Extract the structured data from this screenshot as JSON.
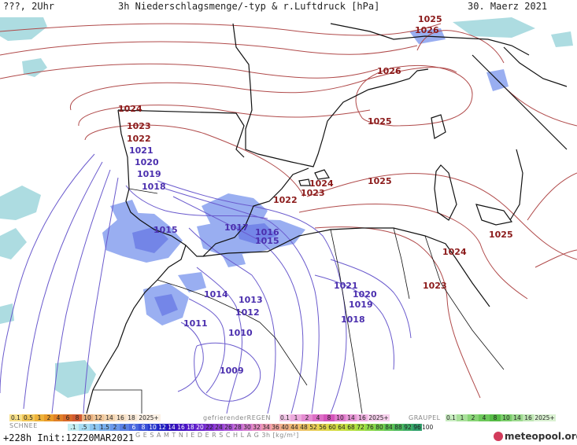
{
  "header": {
    "left": "???, 2Uhr",
    "title": "3h Niederschlagsmenge/-typ & r.Luftdruck [hPa]",
    "date": "30. Maerz 2021"
  },
  "map": {
    "pressure_labels_red": [
      "1025",
      "1026",
      "1026",
      "1025",
      "1024",
      "1023",
      "1022",
      "1025",
      "1024",
      "1023",
      "1022",
      "1025",
      "1024",
      "1023"
    ],
    "pressure_labels_purple": [
      "1021",
      "1020",
      "1019",
      "1018",
      "1015",
      "1017",
      "1016",
      "1015",
      "1014",
      "1013",
      "1012",
      "1011",
      "1010",
      "1009",
      "1021",
      "1020",
      "1019",
      "1018"
    ],
    "colors": {
      "land_border": "#111111",
      "isobar_high": "#b04a4a",
      "isobar_low": "#6a5acd",
      "rain": "#8fa6f0",
      "rain_dark": "#6d7fe6",
      "snow": "#9fd6dc"
    }
  },
  "legend": {
    "snow_title": "SCHNEE",
    "snow_values": [
      "0.1",
      "0.5",
      "1",
      "2",
      "4",
      "6",
      "8",
      "10",
      "12",
      "14",
      "16",
      "18",
      "2025+"
    ],
    "freezing_title": "gefrierenderREGEN",
    "freezing_values": [
      "0.1",
      "1",
      "2",
      "4",
      "8",
      "10",
      "14",
      "16",
      "2025+"
    ],
    "graupel_title": "GRAUPEL",
    "graupel_values": [
      "0.1",
      "1",
      "2",
      "4",
      "8",
      "10",
      "14",
      "16",
      "2025+"
    ],
    "total_title": "G E S A M T N I E D E R S C H L A G   3h   [kg/m²]",
    "total_values": [
      ".1",
      ".5",
      "1",
      "1.5",
      "2",
      "4",
      "6",
      "8",
      "10",
      "12",
      "14",
      "16",
      "18",
      "20",
      "22",
      "24",
      "26",
      "28",
      "30",
      "32",
      "34",
      "36",
      "40",
      "44",
      "48",
      "52",
      "56",
      "60",
      "64",
      "68",
      "72",
      "76",
      "80",
      "84",
      "88",
      "92",
      "96",
      "100"
    ],
    "run_info": "+228h  Init:12Z20MAR2021",
    "logo": "meteopool.org"
  }
}
